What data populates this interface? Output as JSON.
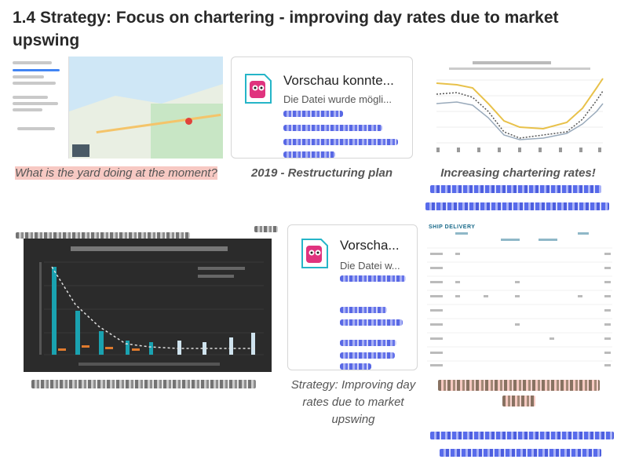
{
  "heading": "1.4 Strategy: Focus on chartering - improving day rates due to market upswing",
  "cards": [
    {
      "title": "Vorschau konnte...",
      "subtitle": "Die Datei wurde mögli..."
    },
    {
      "title": "Vorscha...",
      "subtitle": "Die Datei w..."
    }
  ],
  "captions": {
    "map": "What is the yard doing at the moment?",
    "restructuring": "2019 - Restructuring plan",
    "chartering": "Increasing chartering rates!",
    "strategy_line1": "Strategy: Improving day",
    "strategy_line2": "rates due to market",
    "strategy_line3": "upswing"
  },
  "delivery": {
    "header": "SHIP DELIVERY"
  },
  "colors": {
    "highlight": "#f7c9c3",
    "file_icon": "#e0337e",
    "link_blur": "#3b4de0"
  }
}
